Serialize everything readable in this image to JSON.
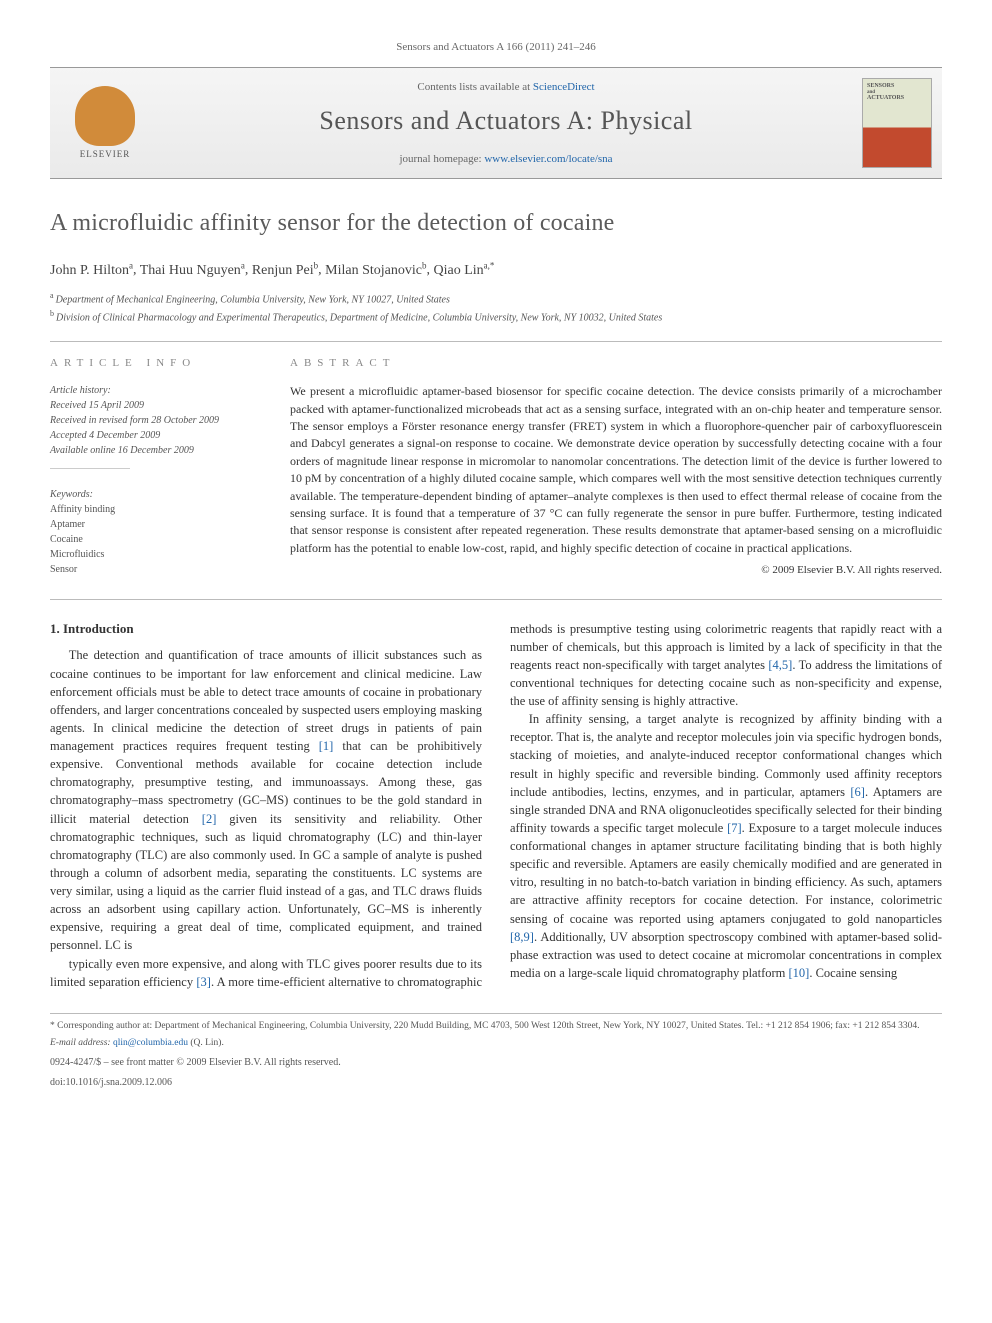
{
  "journal_ref": "Sensors and Actuators A 166 (2011) 241–246",
  "contents_bar": {
    "elsevier_label": "ELSEVIER",
    "contents_label": "Contents lists available at ",
    "sd_link": "ScienceDirect",
    "journal_title": "Sensors and Actuators A: Physical",
    "homepage_label": "journal homepage: ",
    "homepage_url": "www.elsevier.com/locate/sna",
    "cover_text_top": "SENSORS",
    "cover_text_bot": "ACTUATORS"
  },
  "article": {
    "title": "A microfluidic affinity sensor for the detection of cocaine",
    "authors_html": "John P. Hilton^a, Thai Huu Nguyen^a, Renjun Pei^b, Milan Stojanovic^b, Qiao Lin^a,*",
    "authors": [
      {
        "name": "John P. Hilton",
        "aff": "a"
      },
      {
        "name": "Thai Huu Nguyen",
        "aff": "a"
      },
      {
        "name": "Renjun Pei",
        "aff": "b"
      },
      {
        "name": "Milan Stojanovic",
        "aff": "b"
      },
      {
        "name": "Qiao Lin",
        "aff": "a,*"
      }
    ],
    "affiliations": {
      "a": "Department of Mechanical Engineering, Columbia University, New York, NY 10027, United States",
      "b": "Division of Clinical Pharmacology and Experimental Therapeutics, Department of Medicine, Columbia University, New York, NY 10032, United States"
    }
  },
  "info": {
    "heading": "article info",
    "history_label": "Article history:",
    "received": "Received 15 April 2009",
    "revised": "Received in revised form 28 October 2009",
    "accepted": "Accepted 4 December 2009",
    "online": "Available online 16 December 2009",
    "keywords_label": "Keywords:",
    "keywords": [
      "Affinity binding",
      "Aptamer",
      "Cocaine",
      "Microfluidics",
      "Sensor"
    ]
  },
  "abstract": {
    "heading": "abstract",
    "text": "We present a microfluidic aptamer-based biosensor for specific cocaine detection. The device consists primarily of a microchamber packed with aptamer-functionalized microbeads that act as a sensing surface, integrated with an on-chip heater and temperature sensor. The sensor employs a Förster resonance energy transfer (FRET) system in which a fluorophore-quencher pair of carboxyfluorescein and Dabcyl generates a signal-on response to cocaine. We demonstrate device operation by successfully detecting cocaine with a four orders of magnitude linear response in micromolar to nanomolar concentrations. The detection limit of the device is further lowered to 10 pM by concentration of a highly diluted cocaine sample, which compares well with the most sensitive detection techniques currently available. The temperature-dependent binding of aptamer–analyte complexes is then used to effect thermal release of cocaine from the sensing surface. It is found that a temperature of 37 °C can fully regenerate the sensor in pure buffer. Furthermore, testing indicated that sensor response is consistent after repeated regeneration. These results demonstrate that aptamer-based sensing on a microfluidic platform has the potential to enable low-cost, rapid, and highly specific detection of cocaine in practical applications.",
    "copyright": "© 2009 Elsevier B.V. All rights reserved."
  },
  "body": {
    "section_heading": "1. Introduction",
    "p1": "The detection and quantification of trace amounts of illicit substances such as cocaine continues to be important for law enforcement and clinical medicine. Law enforcement officials must be able to detect trace amounts of cocaine in probationary offenders, and larger concentrations concealed by suspected users employing masking agents. In clinical medicine the detection of street drugs in patients of pain management practices requires frequent testing [1] that can be prohibitively expensive. Conventional methods available for cocaine detection include chromatography, presumptive testing, and immunoassays. Among these, gas chromatography–mass spectrometry (GC–MS) continues to be the gold standard in illicit material detection [2] given its sensitivity and reliability. Other chromatographic techniques, such as liquid chromatography (LC) and thin-layer chromatography (TLC) are also commonly used. In GC a sample of analyte is pushed through a column of adsorbent media, separating the constituents. LC systems are very similar, using a liquid as the carrier fluid instead of a gas, and TLC draws fluids across an adsorbent using capillary action. Unfortunately, GC–MS is inherently expensive, requiring a great deal of time, complicated equipment, and trained personnel. LC is",
    "p2": "typically even more expensive, and along with TLC gives poorer results due to its limited separation efficiency [3]. A more time-efficient alternative to chromatographic methods is presumptive testing using colorimetric reagents that rapidly react with a number of chemicals, but this approach is limited by a lack of specificity in that the reagents react non-specifically with target analytes [4,5]. To address the limitations of conventional techniques for detecting cocaine such as non-specificity and expense, the use of affinity sensing is highly attractive.",
    "p3": "In affinity sensing, a target analyte is recognized by affinity binding with a receptor. That is, the analyte and receptor molecules join via specific hydrogen bonds, stacking of moieties, and analyte-induced receptor conformational changes which result in highly specific and reversible binding. Commonly used affinity receptors include antibodies, lectins, enzymes, and in particular, aptamers [6]. Aptamers are single stranded DNA and RNA oligonucleotides specifically selected for their binding affinity towards a specific target molecule [7]. Exposure to a target molecule induces conformational changes in aptamer structure facilitating binding that is both highly specific and reversible. Aptamers are easily chemically modified and are generated in vitro, resulting in no batch-to-batch variation in binding efficiency. As such, aptamers are attractive affinity receptors for cocaine detection. For instance, colorimetric sensing of cocaine was reported using aptamers conjugated to gold nanoparticles [8,9]. Additionally, UV absorption spectroscopy combined with aptamer-based solid-phase extraction was used to detect cocaine at micromolar concentrations in complex media on a large-scale liquid chromatography platform [10]. Cocaine sensing"
  },
  "footer": {
    "corr": "* Corresponding author at: Department of Mechanical Engineering, Columbia University, 220 Mudd Building, MC 4703, 500 West 120th Street, New York, NY 10027, United States. Tel.: +1 212 854 1906; fax: +1 212 854 3304.",
    "email_label": "E-mail address: ",
    "email": "qlin@columbia.edu",
    "email_tail": " (Q. Lin).",
    "front_matter": "0924-4247/$ – see front matter © 2009 Elsevier B.V. All rights reserved.",
    "doi": "doi:10.1016/j.sna.2009.12.006"
  },
  "colors": {
    "link": "#2266aa",
    "rule": "#bbbbbb",
    "heading_gray": "#888888",
    "text": "#333333"
  }
}
